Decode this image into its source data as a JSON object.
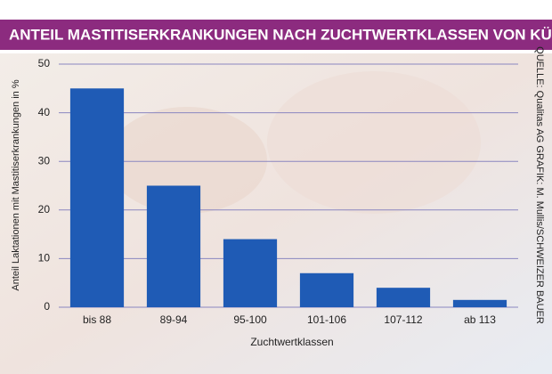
{
  "chart_data": {
    "type": "bar",
    "title": "ANTEIL MASTITISERKRANKUNGEN NACH ZUCHTWERTKLASSEN VON KÜHEN",
    "x_label": "Zuchtwertklassen",
    "y_label": "Anteil Laktationen mit Mastitiserkrankungen in %",
    "source": "QUELLE: Qualitas AG GRAFIK: M. Mullis/SCHWEIZER BAUER",
    "categories": [
      "bis 88",
      "89-94",
      "95-100",
      "101-106",
      "107-112",
      "ab 113"
    ],
    "values": [
      45,
      25,
      14,
      7,
      4,
      1.5
    ],
    "color": "#1f5bb5",
    "ylim": [
      0,
      50
    ],
    "yticks": [
      0,
      10,
      20,
      30,
      40,
      50
    ],
    "grid": true
  }
}
